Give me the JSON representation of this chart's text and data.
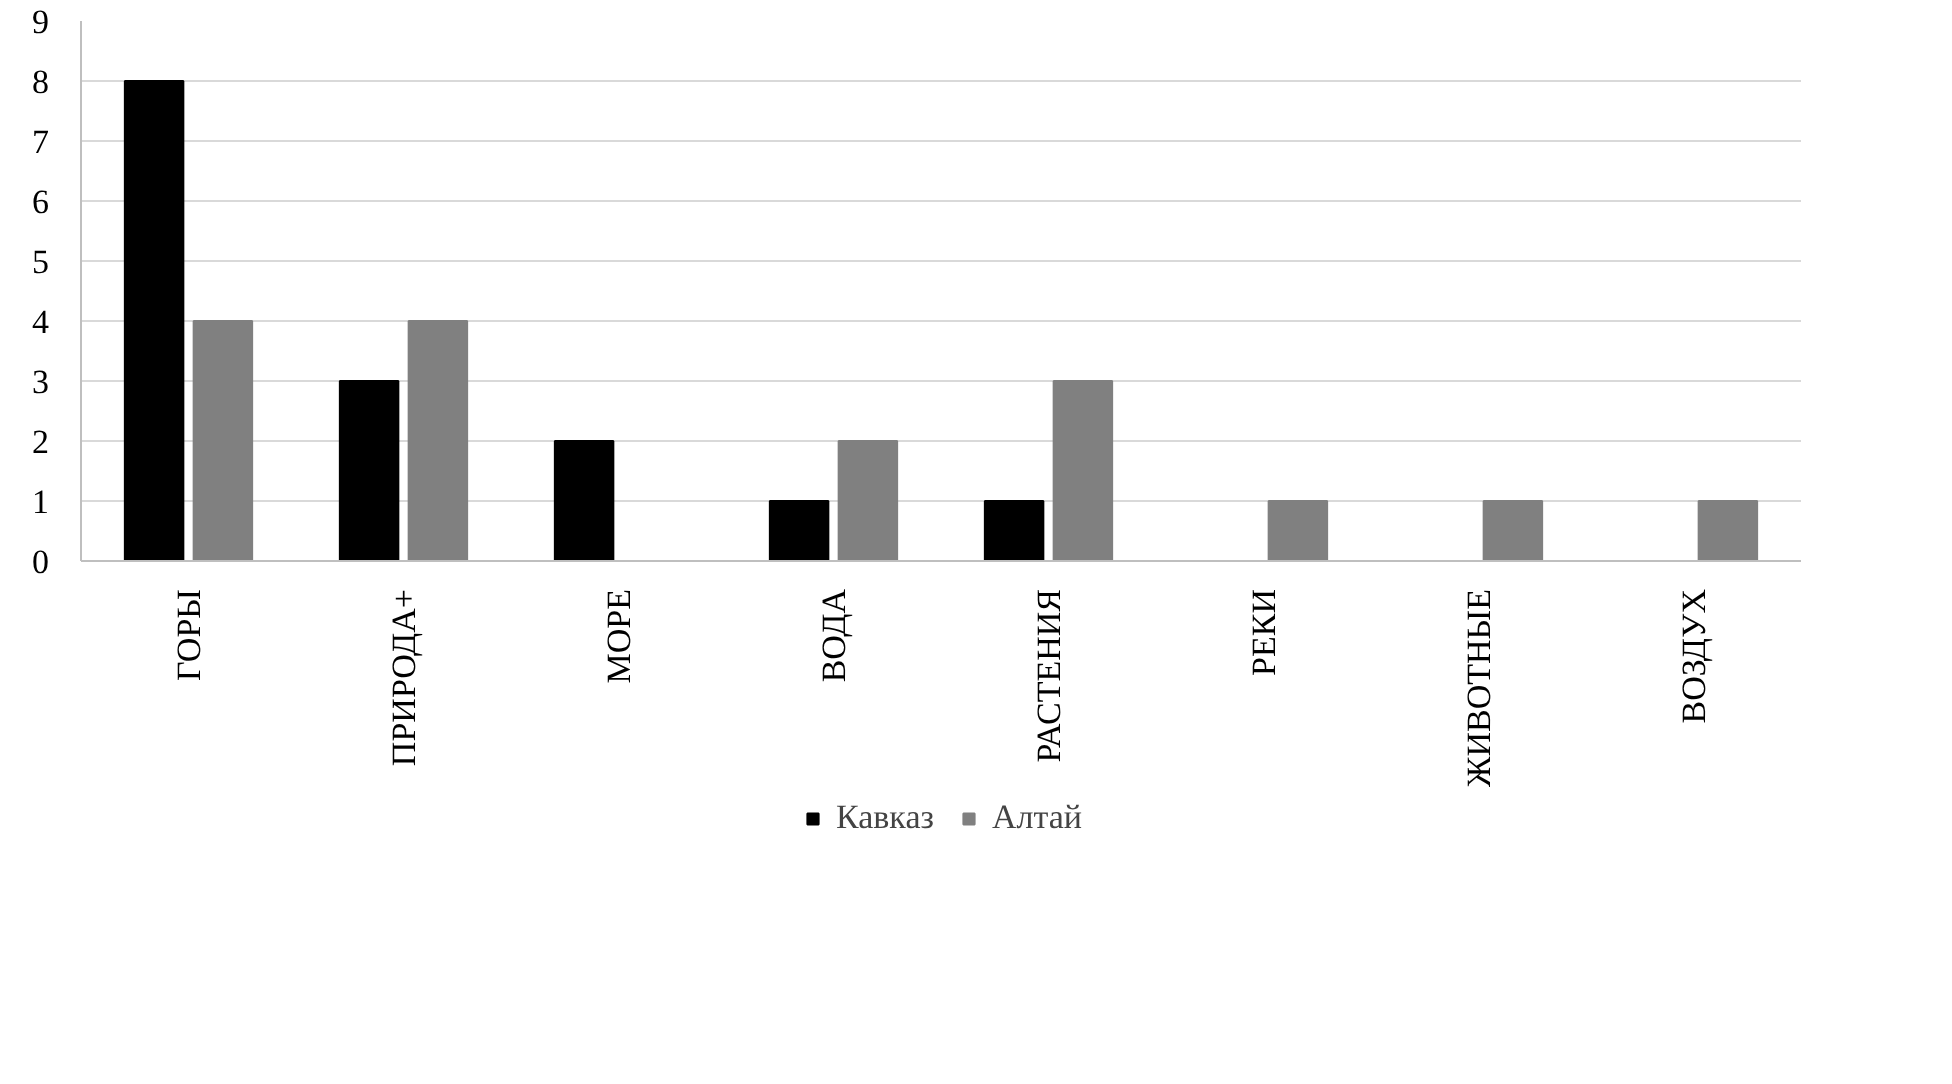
{
  "chart_data": {
    "type": "bar",
    "categories": [
      "ГОРЫ",
      "ПРИРОДА+",
      "МОРЕ",
      "ВОДА",
      "РАСТЕНИЯ",
      "РЕКИ",
      "ЖИВОТНЫЕ",
      "ВОЗДУХ"
    ],
    "series": [
      {
        "name": "Кавказ",
        "color": "#000000",
        "values": [
          8,
          3,
          2,
          1,
          1,
          0,
          0,
          0
        ]
      },
      {
        "name": "Алтай",
        "color": "#808080",
        "values": [
          4,
          4,
          0,
          2,
          3,
          1,
          1,
          1
        ]
      }
    ],
    "ylim": [
      0,
      9
    ],
    "yticks": [
      0,
      1,
      2,
      3,
      4,
      5,
      6,
      7,
      8,
      9
    ],
    "grid": "y",
    "legend": "bottom"
  }
}
